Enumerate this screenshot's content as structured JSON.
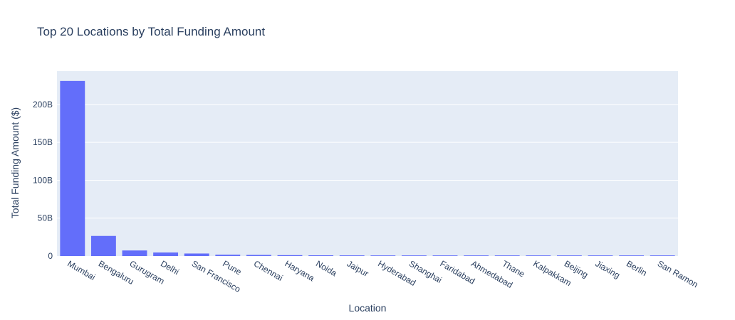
{
  "chart_data": {
    "type": "bar",
    "title": "Top 20 Locations by Total Funding Amount",
    "xlabel": "Location",
    "ylabel": "Total Funding Amount ($)",
    "categories": [
      "Mumbai",
      "Bengaluru",
      "Gurugram",
      "Delhi",
      "San Francisco",
      "Pune",
      "Chennai",
      "Haryana",
      "Noida",
      "Jaipur",
      "Hyderabad",
      "Shanghai",
      "Faridabad",
      "Ahmedabad",
      "Thane",
      "Kalpakkam",
      "Beijing",
      "Jiaxing",
      "Berlin",
      "San Ramon"
    ],
    "values": [
      231000000000,
      26500000000,
      7300000000,
      4600000000,
      3300000000,
      1700000000,
      1400000000,
      1100000000,
      900000000,
      800000000,
      700000000,
      600000000,
      500000000,
      450000000,
      400000000,
      350000000,
      300000000,
      250000000,
      200000000,
      150000000
    ],
    "ylim": [
      0,
      244000000000
    ],
    "yticks": [
      0,
      50000000000,
      100000000000,
      150000000000,
      200000000000
    ],
    "ytick_labels": [
      "0",
      "50B",
      "100B",
      "150B",
      "200B"
    ],
    "bar_color": "#636efa",
    "plot_bg": "#e5ecf6",
    "grid": true,
    "legend": "none"
  }
}
